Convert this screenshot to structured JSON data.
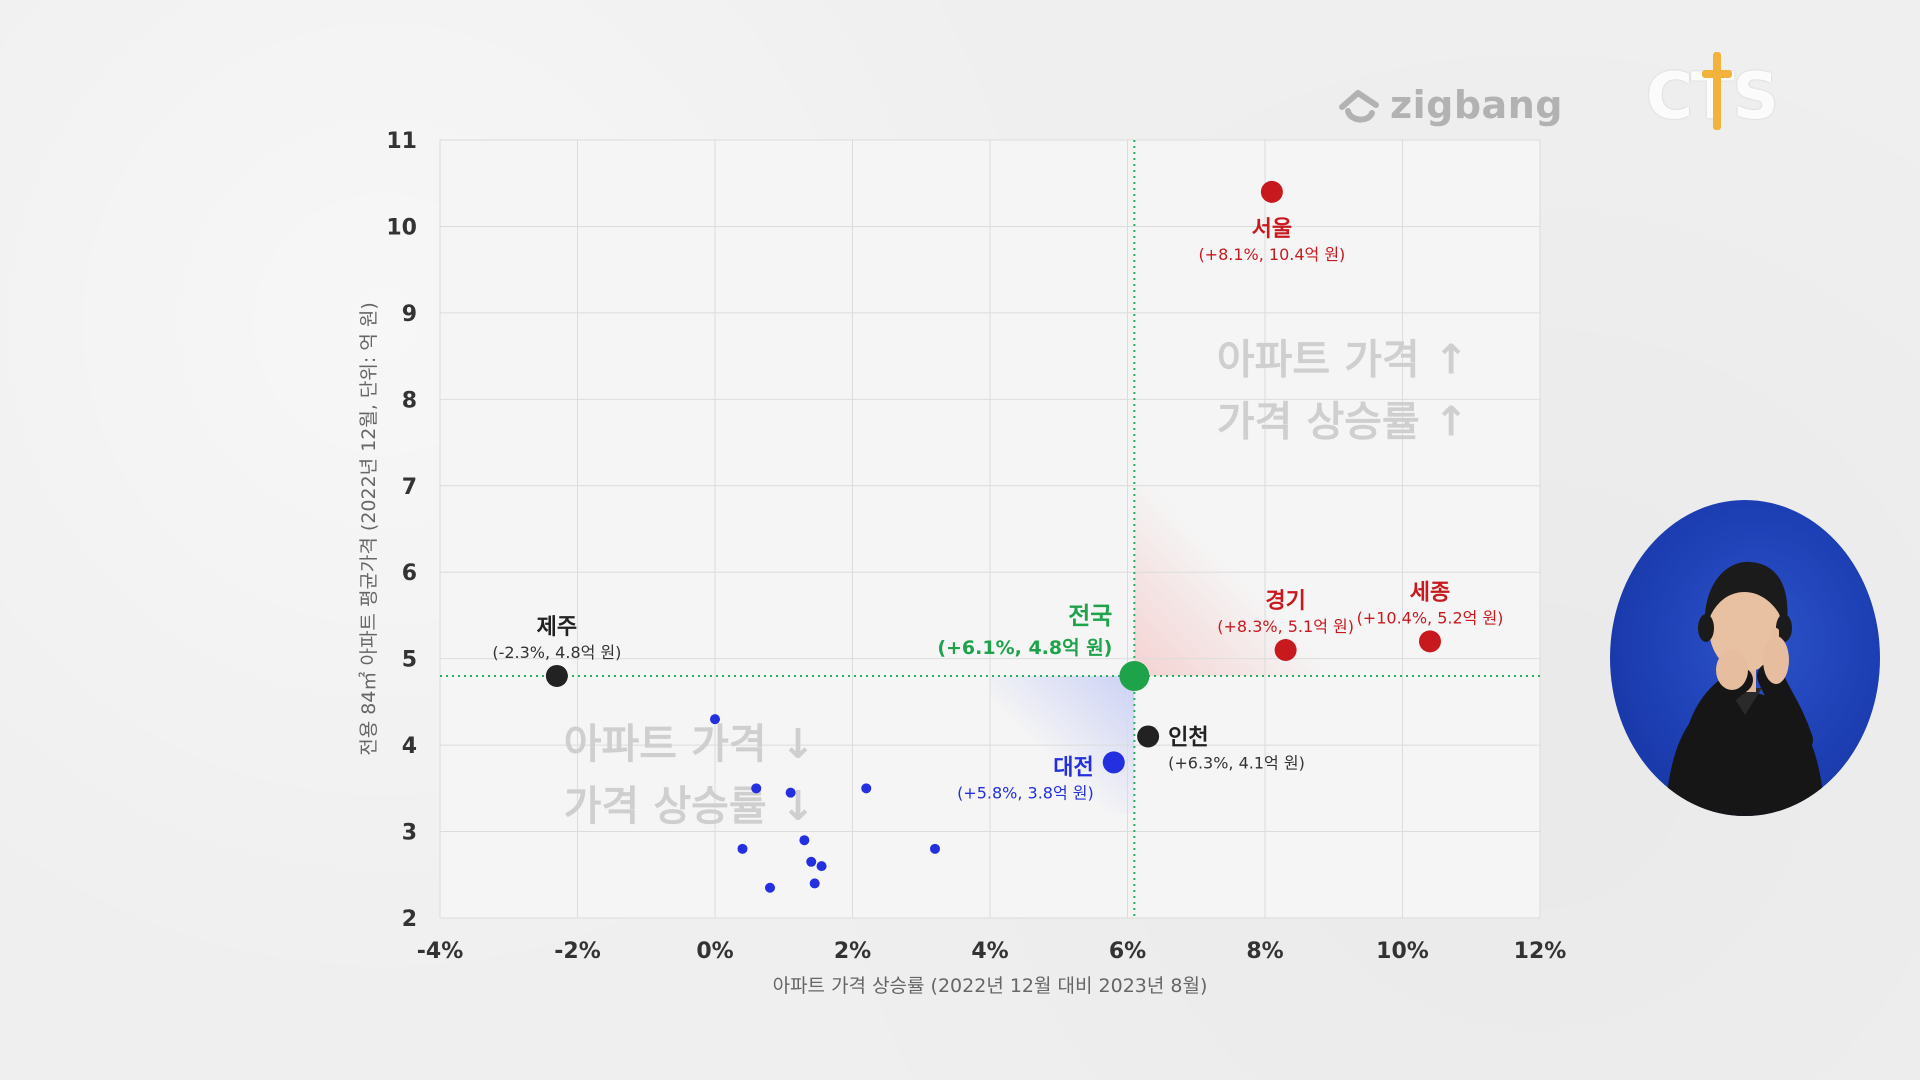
{
  "chart_data": {
    "type": "scatter",
    "xlabel": "아파트 가격 상승률 (2022년 12월 대비 2023년 8월)",
    "ylabel": "전용 84㎡ 아파트 평균가격 (2022년 12월, 단위: 억 원)",
    "xlim": [
      -4,
      12
    ],
    "ylim": [
      2,
      11
    ],
    "x_ticks": [
      -4,
      -2,
      0,
      2,
      4,
      6,
      8,
      10,
      12
    ],
    "x_tick_labels": [
      "-4%",
      "-2%",
      "0%",
      "2%",
      "4%",
      "6%",
      "8%",
      "10%",
      "12%"
    ],
    "y_ticks": [
      2,
      3,
      4,
      5,
      6,
      7,
      8,
      9,
      10,
      11
    ],
    "y_tick_labels": [
      "2",
      "3",
      "4",
      "5",
      "6",
      "7",
      "8",
      "9",
      "10",
      "11"
    ],
    "grid": true,
    "reference_lines": {
      "x": 6.1,
      "y": 4.8,
      "color": "#27ae60",
      "style": "dotted"
    },
    "quadrant_labels": [
      {
        "line1": "아파트 가격 ↑",
        "line2": "가격 상승률 ↑",
        "position": "top-right"
      },
      {
        "line1": "아파트 가격 ↓",
        "line2": "가격 상승률 ↓",
        "position": "bottom-left"
      }
    ],
    "colors": {
      "high": "#c8191f",
      "low": "#2430e0",
      "national": "#1fa34a",
      "neutral": "#222222"
    },
    "labeled_points": [
      {
        "name": "서울",
        "detail": "(+8.1%, 10.4억 원)",
        "x": 8.1,
        "y": 10.4,
        "color": "#c8191f",
        "size": 11,
        "label_pos": "below"
      },
      {
        "name": "경기",
        "detail": "(+8.3%, 5.1억 원)",
        "x": 8.3,
        "y": 5.1,
        "color": "#c8191f",
        "size": 11,
        "label_pos": "above"
      },
      {
        "name": "세종",
        "detail": "(+10.4%, 5.2억 원)",
        "x": 10.4,
        "y": 5.2,
        "color": "#c8191f",
        "size": 11,
        "label_pos": "above"
      },
      {
        "name": "전국",
        "detail": "(+6.1%, 4.8억 원)",
        "x": 6.1,
        "y": 4.8,
        "color": "#1fa34a",
        "size": 15,
        "label_pos": "above-left"
      },
      {
        "name": "제주",
        "detail": "(-2.3%, 4.8억 원)",
        "x": -2.3,
        "y": 4.8,
        "color": "#222222",
        "size": 11,
        "label_pos": "above"
      },
      {
        "name": "인천",
        "detail": "(+6.3%, 4.1억 원)",
        "x": 6.3,
        "y": 4.1,
        "color": "#222222",
        "size": 11,
        "label_pos": "right"
      },
      {
        "name": "대전",
        "detail": "(+5.8%, 3.8억 원)",
        "x": 5.8,
        "y": 3.8,
        "color": "#2430e0",
        "size": 11,
        "label_pos": "left"
      }
    ],
    "unlabeled_points": [
      {
        "x": 0.0,
        "y": 4.3
      },
      {
        "x": 0.6,
        "y": 3.5
      },
      {
        "x": 1.1,
        "y": 3.45
      },
      {
        "x": 2.2,
        "y": 3.5
      },
      {
        "x": 0.4,
        "y": 2.8
      },
      {
        "x": 1.3,
        "y": 2.9
      },
      {
        "x": 1.4,
        "y": 2.65
      },
      {
        "x": 1.55,
        "y": 2.6
      },
      {
        "x": 1.45,
        "y": 2.4
      },
      {
        "x": 0.8,
        "y": 2.35
      },
      {
        "x": 3.2,
        "y": 2.8
      }
    ],
    "unlabeled_color": "#2430e0"
  },
  "branding": {
    "zigbang": "zigbang",
    "cts": "CTS"
  }
}
